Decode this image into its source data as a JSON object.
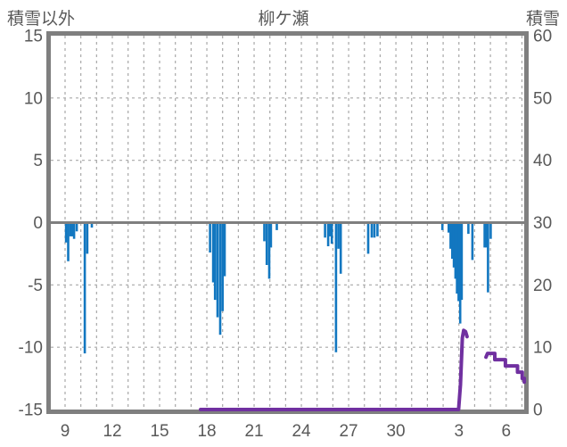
{
  "header": {
    "left_axis_title": "積雪以外",
    "title": "柳ケ瀬",
    "right_axis_title": "積雪"
  },
  "colors": {
    "bar": "#1277c0",
    "snow_line": "#7030a0",
    "border": "#7f7f7f",
    "zero_line": "#7f7f7f",
    "grid": "#a8a8a8",
    "text": "#595959",
    "background": "#ffffff"
  },
  "chart_data": {
    "type": "bar",
    "title": "柳ケ瀬",
    "left_axis": {
      "title": "積雪以外",
      "ticks": [
        15,
        10,
        5,
        0,
        -5,
        -10,
        -15
      ],
      "tick_labels": [
        "15",
        "10",
        "5",
        "0",
        "-5",
        "-10",
        "-15"
      ],
      "range": [
        -15,
        15
      ]
    },
    "right_axis": {
      "title": "積雪",
      "ticks": [
        60,
        50,
        40,
        30,
        20,
        10,
        0
      ],
      "tick_labels": [
        "60",
        "50",
        "40",
        "30",
        "20",
        "10",
        "0"
      ],
      "range": [
        0,
        60
      ]
    },
    "x_axis": {
      "tick_days": [
        9,
        12,
        15,
        18,
        21,
        24,
        27,
        30,
        34,
        37
      ],
      "tick_labels": [
        "9",
        "12",
        "15",
        "18",
        "21",
        "24",
        "27",
        "30",
        "3",
        "6"
      ],
      "day_min": 8.1,
      "day_max": 38.15,
      "grid_day_start": 9,
      "grid_day_end": 38
    },
    "h_gridlines_left_values": [
      10,
      5,
      -5,
      -10
    ],
    "grid": "dashed",
    "series": [
      {
        "name": "積雪以外",
        "type": "bar",
        "axis": "left",
        "points": [
          [
            9.06,
            -1.6
          ],
          [
            9.2,
            -3.1
          ],
          [
            9.34,
            -1.1
          ],
          [
            9.45,
            -1.1
          ],
          [
            9.57,
            -1.3
          ],
          [
            9.74,
            -0.7
          ],
          [
            10.25,
            -10.5
          ],
          [
            10.41,
            -2.5
          ],
          [
            10.7,
            -0.4
          ],
          [
            18.2,
            -2.4
          ],
          [
            18.4,
            -4.8
          ],
          [
            18.52,
            -6.2
          ],
          [
            18.68,
            -7.6
          ],
          [
            18.85,
            -9.0
          ],
          [
            19.0,
            -7.1
          ],
          [
            19.13,
            -4.3
          ],
          [
            21.65,
            -1.5
          ],
          [
            21.8,
            -3.4
          ],
          [
            21.96,
            -4.5
          ],
          [
            22.07,
            -2.0
          ],
          [
            22.44,
            -0.6
          ],
          [
            25.5,
            -1.2
          ],
          [
            25.7,
            -1.9
          ],
          [
            25.82,
            -1.1
          ],
          [
            25.93,
            -1.7
          ],
          [
            26.2,
            -10.4
          ],
          [
            26.35,
            -2.1
          ],
          [
            26.5,
            -4.1
          ],
          [
            28.24,
            -2.5
          ],
          [
            28.47,
            -1.2
          ],
          [
            28.64,
            -1.2
          ],
          [
            28.83,
            -1.1
          ],
          [
            32.95,
            -0.6
          ],
          [
            33.35,
            -0.8
          ],
          [
            33.47,
            -2.1
          ],
          [
            33.58,
            -2.9
          ],
          [
            33.68,
            -3.6
          ],
          [
            33.78,
            -4.5
          ],
          [
            33.88,
            -5.7
          ],
          [
            33.98,
            -6.3
          ],
          [
            34.08,
            -8.1
          ],
          [
            34.18,
            -6.2
          ],
          [
            34.6,
            -0.9
          ],
          [
            34.86,
            -3.0
          ],
          [
            35.63,
            -2.0
          ],
          [
            35.74,
            -2.0
          ],
          [
            35.85,
            -5.6
          ],
          [
            36.02,
            -1.3
          ]
        ]
      },
      {
        "name": "積雪",
        "type": "line",
        "axis": "right",
        "segments": [
          [
            [
              17.6,
              0
            ],
            [
              33.98,
              0
            ],
            [
              34.1,
              4
            ],
            [
              34.22,
              11.5
            ],
            [
              34.3,
              12.7
            ],
            [
              34.42,
              12.5
            ],
            [
              34.52,
              11.7
            ]
          ],
          [
            [
              35.72,
              8.4
            ],
            [
              35.82,
              9
            ],
            [
              36.28,
              9
            ],
            [
              36.28,
              8
            ],
            [
              36.95,
              8
            ],
            [
              36.95,
              7
            ],
            [
              37.72,
              7
            ],
            [
              37.72,
              6
            ],
            [
              38.02,
              6
            ],
            [
              38.02,
              5
            ],
            [
              38.15,
              5
            ],
            [
              38.15,
              4.4
            ]
          ]
        ]
      }
    ]
  }
}
